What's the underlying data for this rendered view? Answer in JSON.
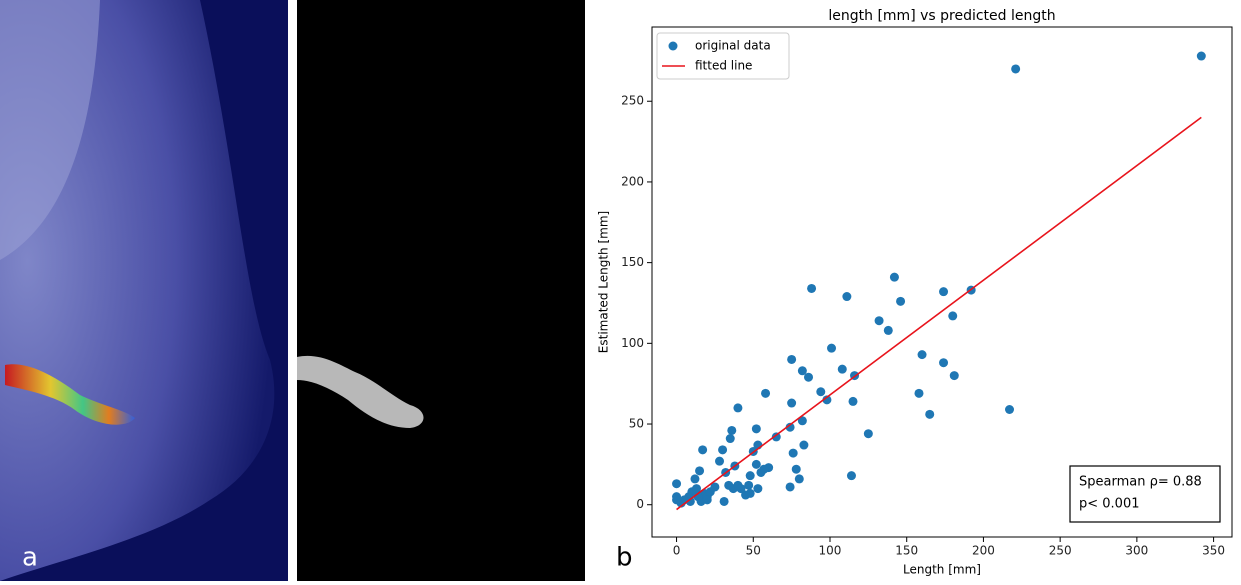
{
  "panels": [
    "a",
    "b"
  ],
  "chart_data": {
    "type": "scatter",
    "title": "length [mm] vs predicted length",
    "xlabel": "Length [mm]",
    "ylabel": "Estimated Length [mm]",
    "xlim": [
      -16,
      362
    ],
    "ylim": [
      -20,
      296
    ],
    "xticks": [
      0,
      50,
      100,
      150,
      200,
      250,
      300,
      350
    ],
    "yticks": [
      0,
      50,
      100,
      150,
      200,
      250
    ],
    "legend": "upper left",
    "annotation": [
      "Spearman ρ= 0.88",
      "p< 0.001"
    ],
    "series": [
      {
        "name": "original data",
        "color": "#1f77b4",
        "kind": "markers",
        "x": [
          342,
          221,
          192,
          174,
          180,
          142,
          146,
          132,
          138,
          88,
          111,
          158,
          160,
          174,
          181,
          165,
          217,
          116,
          115,
          125,
          114,
          101,
          108,
          94,
          98,
          75,
          82,
          86,
          75,
          82,
          74,
          76,
          78,
          80,
          74,
          83,
          65,
          58,
          40,
          60,
          55,
          52,
          53,
          52,
          50,
          48,
          47,
          45,
          35,
          36,
          32,
          37,
          40,
          28,
          30,
          17,
          15,
          12,
          10,
          8,
          5,
          0,
          0,
          0,
          3,
          13,
          18,
          20,
          22,
          25,
          16,
          20,
          31,
          34,
          38,
          42,
          48,
          53,
          57,
          9,
          14
        ],
        "values": [
          278,
          270,
          133,
          132,
          117,
          141,
          126,
          114,
          108,
          134,
          129,
          69,
          93,
          88,
          80,
          56,
          59,
          80,
          64,
          44,
          18,
          97,
          84,
          70,
          65,
          90,
          83,
          79,
          63,
          52,
          48,
          32,
          22,
          16,
          11,
          37,
          42,
          69,
          60,
          23,
          20,
          25,
          37,
          47,
          33,
          18,
          12,
          6,
          41,
          46,
          20,
          10,
          12,
          27,
          34,
          34,
          21,
          16,
          8,
          5,
          3,
          13,
          5,
          3,
          1,
          10,
          7,
          5,
          8,
          11,
          2,
          3,
          2,
          12,
          24,
          10,
          7,
          10,
          22,
          2,
          5
        ]
      },
      {
        "name": "fitted line",
        "color": "#e8141c",
        "kind": "line",
        "x": [
          0,
          342
        ],
        "values": [
          -3,
          240
        ]
      }
    ]
  }
}
